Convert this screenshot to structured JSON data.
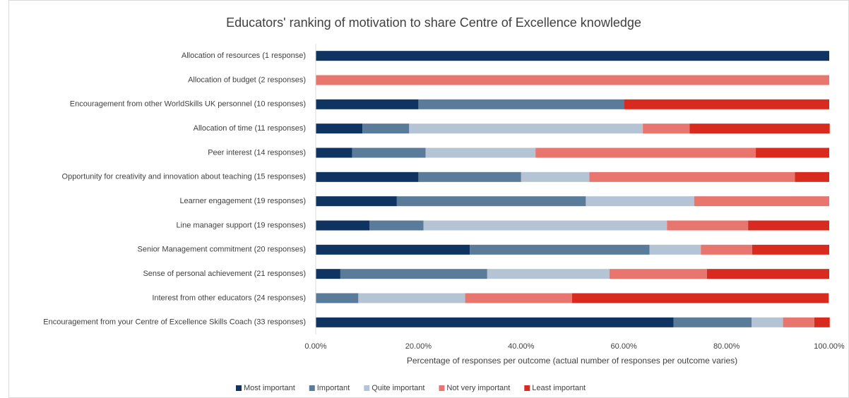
{
  "chart_data": {
    "type": "stacked_bar_horizontal",
    "title": "Educators' ranking of motivation to share Centre of Excellence knowledge",
    "x_label": "Percentage of responses per outcome (actual number of responses per outcome varies)",
    "categories": [
      "Allocation of resources (1 response)",
      "Allocation of budget (2 responses)",
      "Encouragement from other WorldSkills UK personnel (10 responses)",
      "Allocation of time (11 responses)",
      "Peer interest (14 responses)",
      "Opportunity for creativity and innovation about teaching (15 responses)",
      "Learner engagement (19 responses)",
      "Line manager support (19 responses)",
      "Senior Management commitment (20 responses)",
      "Sense of personal achievement (21 responses)",
      "Interest from other educators (24 responses)",
      "Encouragement from your Centre of Excellence Skills Coach (33 responses)"
    ],
    "series": [
      {
        "name": "Most important",
        "color": "#0f3461",
        "values": [
          100,
          0,
          20,
          9.1,
          7.1,
          20,
          15.8,
          10.5,
          30,
          4.8,
          0,
          69.7
        ]
      },
      {
        "name": "Important",
        "color": "#5b7b9b",
        "values": [
          0,
          0,
          40,
          9.1,
          14.3,
          20,
          36.8,
          10.5,
          35,
          28.6,
          8.3,
          15.2
        ]
      },
      {
        "name": "Quite important",
        "color": "#b5c4d5",
        "values": [
          0,
          0,
          0,
          45.5,
          21.4,
          13.3,
          21.1,
          47.4,
          10,
          23.8,
          20.8,
          6.1
        ]
      },
      {
        "name": "Not very important",
        "color": "#e8766e",
        "values": [
          0,
          100,
          0,
          9.1,
          42.9,
          40,
          26.3,
          15.8,
          10,
          19.0,
          20.8,
          6.1
        ]
      },
      {
        "name": "Least important",
        "color": "#d92a20",
        "values": [
          0,
          0,
          40,
          27.3,
          14.3,
          6.7,
          0,
          15.8,
          15,
          23.8,
          50,
          3.0
        ]
      }
    ],
    "xlim": [
      0,
      100
    ],
    "xticks": [
      {
        "value": 0,
        "label": "0.00%"
      },
      {
        "value": 20,
        "label": "20.00%"
      },
      {
        "value": 40,
        "label": "40.00%"
      },
      {
        "value": 60,
        "label": "60.00%"
      },
      {
        "value": 80,
        "label": "80.00%"
      },
      {
        "value": 100,
        "label": "100.00%"
      }
    ],
    "legend": "bottom"
  }
}
